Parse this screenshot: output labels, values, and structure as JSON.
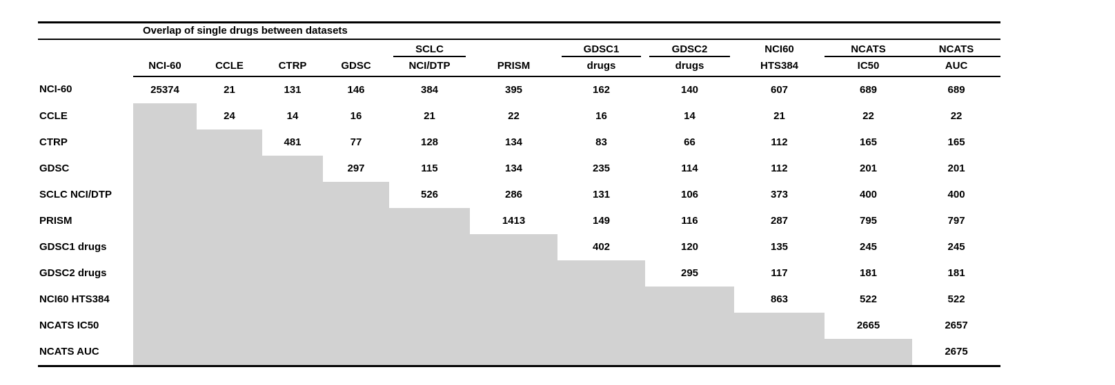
{
  "chart_data": {
    "type": "table",
    "title": "Overlap of single drugs between datasets",
    "shaded_cell_color": "#d2d2d2",
    "rule_color": "#000000",
    "columns": [
      {
        "top": "",
        "bottom": "NCI-60",
        "underline": "none"
      },
      {
        "top": "",
        "bottom": "CCLE",
        "underline": "none"
      },
      {
        "top": "",
        "bottom": "CTRP",
        "underline": "none"
      },
      {
        "top": "",
        "bottom": "GDSC",
        "underline": "none"
      },
      {
        "top": "SCLC",
        "bottom": "NCI/DTP",
        "underline": "inset"
      },
      {
        "top": "",
        "bottom": "PRISM",
        "underline": "none"
      },
      {
        "top": "GDSC1",
        "bottom": "drugs",
        "underline": "inset"
      },
      {
        "top": "GDSC2",
        "bottom": "drugs",
        "underline": "inset"
      },
      {
        "top": "NCI60",
        "bottom": "HTS384",
        "underline": "none"
      },
      {
        "top": "NCATS",
        "bottom": "IC50",
        "underline": "full"
      },
      {
        "top": "NCATS",
        "bottom": "AUC",
        "underline": "full"
      }
    ],
    "rows": [
      {
        "label": "NCI-60",
        "values": [
          25374,
          21,
          131,
          146,
          384,
          395,
          162,
          140,
          607,
          689,
          689
        ]
      },
      {
        "label": "CCLE",
        "values": [
          null,
          24,
          14,
          16,
          21,
          22,
          16,
          14,
          21,
          22,
          22
        ]
      },
      {
        "label": "CTRP",
        "values": [
          null,
          null,
          481,
          77,
          128,
          134,
          83,
          66,
          112,
          165,
          165
        ]
      },
      {
        "label": "GDSC",
        "values": [
          null,
          null,
          null,
          297,
          115,
          134,
          235,
          114,
          112,
          201,
          201
        ]
      },
      {
        "label": "SCLC NCI/DTP",
        "values": [
          null,
          null,
          null,
          null,
          526,
          286,
          131,
          106,
          373,
          400,
          400
        ]
      },
      {
        "label": "PRISM",
        "values": [
          null,
          null,
          null,
          null,
          null,
          1413,
          149,
          116,
          287,
          795,
          797
        ]
      },
      {
        "label": "GDSC1 drugs",
        "values": [
          null,
          null,
          null,
          null,
          null,
          null,
          402,
          120,
          135,
          245,
          245
        ]
      },
      {
        "label": "GDSC2 drugs",
        "values": [
          null,
          null,
          null,
          null,
          null,
          null,
          null,
          295,
          117,
          181,
          181
        ]
      },
      {
        "label": "NCI60 HTS384",
        "values": [
          null,
          null,
          null,
          null,
          null,
          null,
          null,
          null,
          863,
          522,
          522
        ]
      },
      {
        "label": "NCATS IC50",
        "values": [
          null,
          null,
          null,
          null,
          null,
          null,
          null,
          null,
          null,
          2665,
          2657
        ]
      },
      {
        "label": "NCATS AUC",
        "values": [
          null,
          null,
          null,
          null,
          null,
          null,
          null,
          null,
          null,
          null,
          2675
        ]
      }
    ]
  }
}
